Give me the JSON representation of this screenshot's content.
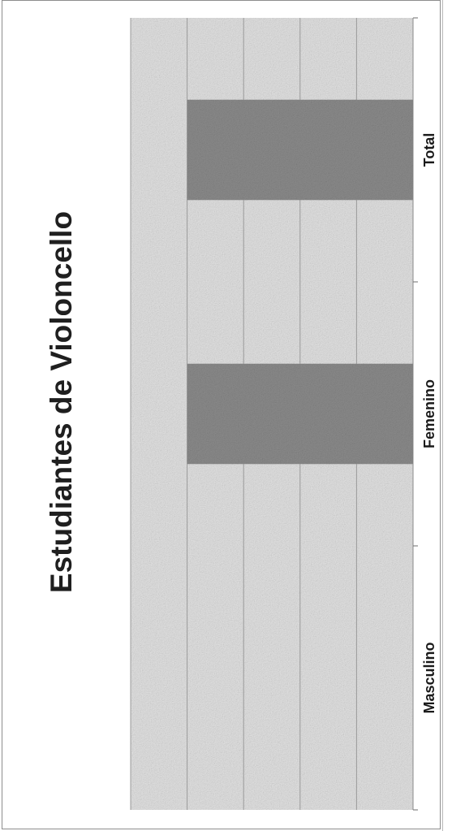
{
  "chart_data": {
    "type": "bar",
    "title": "Estudiantes de Violoncello",
    "categories": [
      "Masculino",
      "Femenino",
      "Total"
    ],
    "series": [
      {
        "values": [
          0,
          4,
          4
        ]
      }
    ],
    "xlabel": "",
    "ylabel": "",
    "ylim": [
      0,
      5
    ],
    "grid": true,
    "legend": "none",
    "orientation": "rotated-90",
    "colors": {
      "bar": "#8c8c8c",
      "plot_background": "#e3e3e3",
      "gridline": "#9a9a9a"
    }
  }
}
